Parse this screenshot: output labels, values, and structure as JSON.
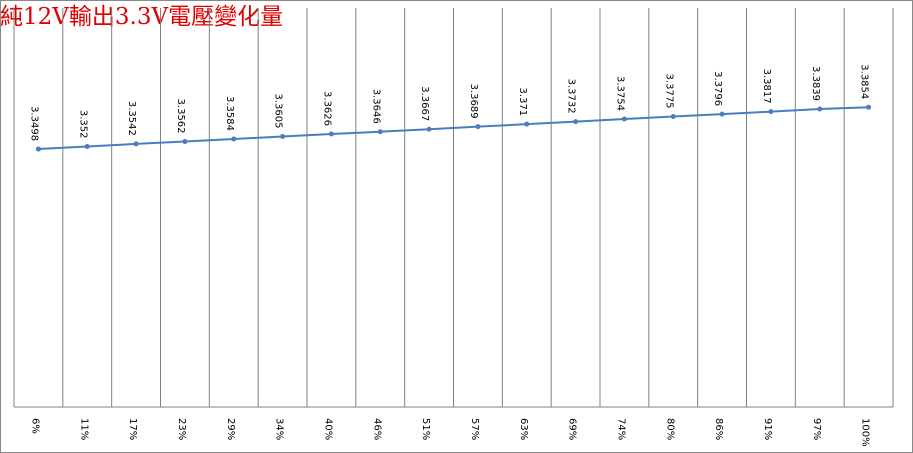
{
  "chart_data": {
    "type": "line",
    "title": "純12V輸出3.3V電壓變化量",
    "categories": [
      "6%",
      "11%",
      "17%",
      "23%",
      "29%",
      "34%",
      "40%",
      "46%",
      "51%",
      "57%",
      "63%",
      "69%",
      "74%",
      "80%",
      "86%",
      "91%",
      "97%",
      "100%"
    ],
    "series": [
      {
        "color": "#4a7ebb",
        "values": [
          3.3498,
          3.352,
          3.3542,
          3.3562,
          3.3584,
          3.3605,
          3.3626,
          3.3646,
          3.3667,
          3.3689,
          3.371,
          3.3732,
          3.3754,
          3.3775,
          3.3796,
          3.3817,
          3.3839,
          3.3854
        ]
      }
    ],
    "ylim": [
      3.13,
      3.47
    ]
  }
}
